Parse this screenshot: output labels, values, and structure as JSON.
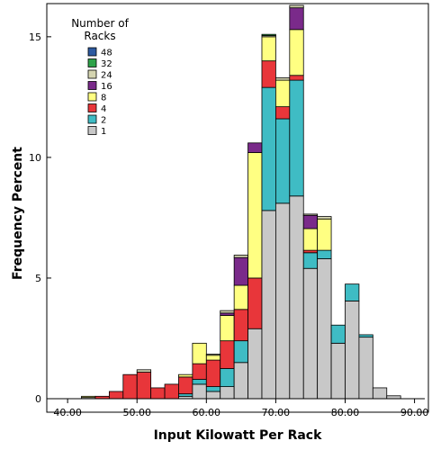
{
  "chart_data": {
    "type": "bar",
    "stacked": true,
    "xlabel": "Input Kilowatt Per Rack",
    "ylabel": "Frequency Percent",
    "xlim": [
      37,
      92
    ],
    "ylim": [
      0,
      16.3
    ],
    "bin_width": 2,
    "x_ticks": [
      "40.00",
      "50.00",
      "60.00",
      "70.00",
      "80.00",
      "90.00"
    ],
    "x_tick_values": [
      40,
      50,
      60,
      70,
      80,
      90
    ],
    "y_ticks": [
      "0",
      "5",
      "10",
      "15"
    ],
    "y_tick_values": [
      0,
      5,
      10,
      15
    ],
    "legend": {
      "title_line1": "Number of",
      "title_line2": "Racks",
      "placement": "top-left",
      "labels": [
        "48",
        "32",
        "24",
        "16",
        "8",
        "4",
        "2",
        "1"
      ]
    },
    "series_order": [
      "1",
      "2",
      "4",
      "8",
      "16",
      "24",
      "32",
      "48"
    ],
    "colors": {
      "1": "#c8c8c8",
      "2": "#3fbcc4",
      "4": "#e8363a",
      "8": "#ffff82",
      "16": "#7a2a8a",
      "24": "#d4d4b0",
      "32": "#2ea34a",
      "48": "#2d5aa0"
    },
    "bins": [
      {
        "x0": 42,
        "x1": 44,
        "1": 0.05,
        "2": 0,
        "4": 0,
        "8": 0.05,
        "16": 0,
        "24": 0,
        "32": 0,
        "48": 0
      },
      {
        "x0": 44,
        "x1": 46,
        "1": 0,
        "2": 0,
        "4": 0.1,
        "8": 0,
        "16": 0,
        "24": 0,
        "32": 0,
        "48": 0
      },
      {
        "x0": 46,
        "x1": 48,
        "1": 0,
        "2": 0,
        "4": 0.3,
        "8": 0,
        "16": 0,
        "24": 0,
        "32": 0,
        "48": 0
      },
      {
        "x0": 48,
        "x1": 50,
        "1": 0,
        "2": 0,
        "4": 1.0,
        "8": 0,
        "16": 0,
        "24": 0,
        "32": 0,
        "48": 0
      },
      {
        "x0": 50,
        "x1": 52,
        "1": 0,
        "2": 0,
        "4": 1.1,
        "8": 0,
        "16": 0,
        "24": 0.1,
        "32": 0,
        "48": 0
      },
      {
        "x0": 52,
        "x1": 54,
        "1": 0,
        "2": 0,
        "4": 0.45,
        "8": 0,
        "16": 0,
        "24": 0,
        "32": 0,
        "48": 0
      },
      {
        "x0": 54,
        "x1": 56,
        "1": 0,
        "2": 0,
        "4": 0.6,
        "8": 0,
        "16": 0,
        "24": 0,
        "32": 0,
        "48": 0
      },
      {
        "x0": 56,
        "x1": 58,
        "1": 0.1,
        "2": 0.1,
        "4": 0.7,
        "8": 0.1,
        "16": 0,
        "24": 0,
        "32": 0,
        "48": 0
      },
      {
        "x0": 58,
        "x1": 60,
        "1": 0.6,
        "2": 0.2,
        "4": 0.65,
        "8": 0.85,
        "16": 0,
        "24": 0,
        "32": 0,
        "48": 0
      },
      {
        "x0": 60,
        "x1": 62,
        "1": 0.3,
        "2": 0.2,
        "4": 1.1,
        "8": 0.2,
        "16": 0,
        "24": 0.05,
        "32": 0,
        "48": 0
      },
      {
        "x0": 62,
        "x1": 64,
        "1": 0.5,
        "2": 0.75,
        "4": 1.15,
        "8": 1.05,
        "16": 0.1,
        "24": 0.1,
        "32": 0,
        "48": 0
      },
      {
        "x0": 64,
        "x1": 66,
        "1": 1.5,
        "2": 0.9,
        "4": 1.3,
        "8": 1.0,
        "16": 1.15,
        "24": 0.1,
        "32": 0,
        "48": 0
      },
      {
        "x0": 66,
        "x1": 68,
        "1": 2.9,
        "2": 0,
        "4": 2.1,
        "8": 5.2,
        "16": 0.4,
        "24": 0,
        "32": 0,
        "48": 0
      },
      {
        "x0": 68,
        "x1": 70,
        "1": 7.8,
        "2": 5.1,
        "4": 1.1,
        "8": 1.0,
        "16": 0,
        "24": 0.05,
        "32": 0.05,
        "48": 0
      },
      {
        "x0": 70,
        "x1": 72,
        "1": 8.1,
        "2": 3.5,
        "4": 0.5,
        "8": 1.1,
        "16": 0,
        "24": 0.1,
        "32": 0,
        "48": 0
      },
      {
        "x0": 72,
        "x1": 74,
        "1": 8.4,
        "2": 4.8,
        "4": 0.2,
        "8": 1.9,
        "16": 0.9,
        "24": 0.1,
        "32": 0,
        "48": 0
      },
      {
        "x0": 74,
        "x1": 76,
        "1": 5.4,
        "2": 0.65,
        "4": 0.1,
        "8": 0.9,
        "16": 0.55,
        "24": 0.05,
        "32": 0,
        "48": 0
      },
      {
        "x0": 76,
        "x1": 78,
        "1": 5.8,
        "2": 0.35,
        "4": 0,
        "8": 1.3,
        "16": 0,
        "24": 0.1,
        "32": 0,
        "48": 0
      },
      {
        "x0": 78,
        "x1": 80,
        "1": 2.3,
        "2": 0.75,
        "4": 0,
        "8": 0,
        "16": 0,
        "24": 0,
        "32": 0,
        "48": 0
      },
      {
        "x0": 80,
        "x1": 82,
        "1": 4.05,
        "2": 0.7,
        "4": 0,
        "8": 0,
        "16": 0,
        "24": 0,
        "32": 0,
        "48": 0
      },
      {
        "x0": 82,
        "x1": 84,
        "1": 2.55,
        "2": 0.1,
        "4": 0,
        "8": 0,
        "16": 0,
        "24": 0,
        "32": 0,
        "48": 0
      },
      {
        "x0": 84,
        "x1": 86,
        "1": 0.45,
        "2": 0,
        "4": 0,
        "8": 0,
        "16": 0,
        "24": 0,
        "32": 0,
        "48": 0
      },
      {
        "x0": 86,
        "x1": 88,
        "1": 0.12,
        "2": 0,
        "4": 0,
        "8": 0,
        "16": 0,
        "24": 0,
        "32": 0,
        "48": 0
      }
    ]
  }
}
